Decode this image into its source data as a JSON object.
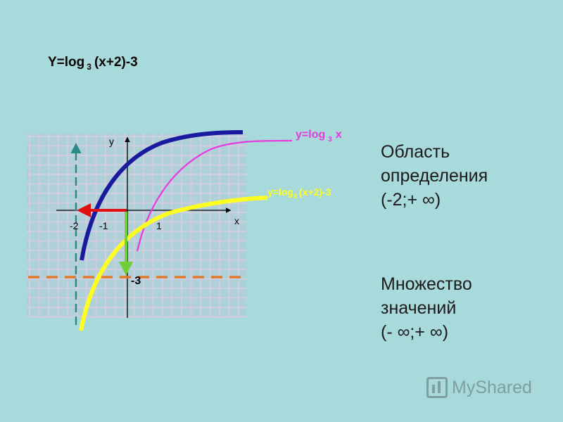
{
  "title": {
    "prefix": "Y=log",
    "base": "3",
    "suffix": "(x+2)-3"
  },
  "graph": {
    "y_axis_label": "y",
    "x_axis_label": "x",
    "x_ticks": [
      "-2",
      "-1",
      "1"
    ],
    "y_marker": "-3",
    "curve_labels": {
      "log3x": {
        "prefix": "y=log",
        "base": "3",
        "suffix": "x"
      },
      "shifted": {
        "prefix": "y=log",
        "base": "3",
        "suffix": "(x+2)-3"
      }
    },
    "colors": {
      "background": "#a9dadb",
      "grid": "#c4c2d6",
      "log3x": "#e838e0",
      "shifted_left": "#1a1a9e",
      "shifted_final": "#ffff22",
      "horizontal_arrow": "#e01010",
      "vertical_arrow": "#6fce3a",
      "asymptote_x": "#2a8a86",
      "asymptote_y": "#e07a2a"
    }
  },
  "domain": {
    "line1": "Область",
    "line2": "определения",
    "line3": "(-2;+ ∞)"
  },
  "range": {
    "line1": "Множество",
    "line2": "значений",
    "line3": "(- ∞;+ ∞)"
  },
  "watermark": {
    "text": "MyShared"
  }
}
